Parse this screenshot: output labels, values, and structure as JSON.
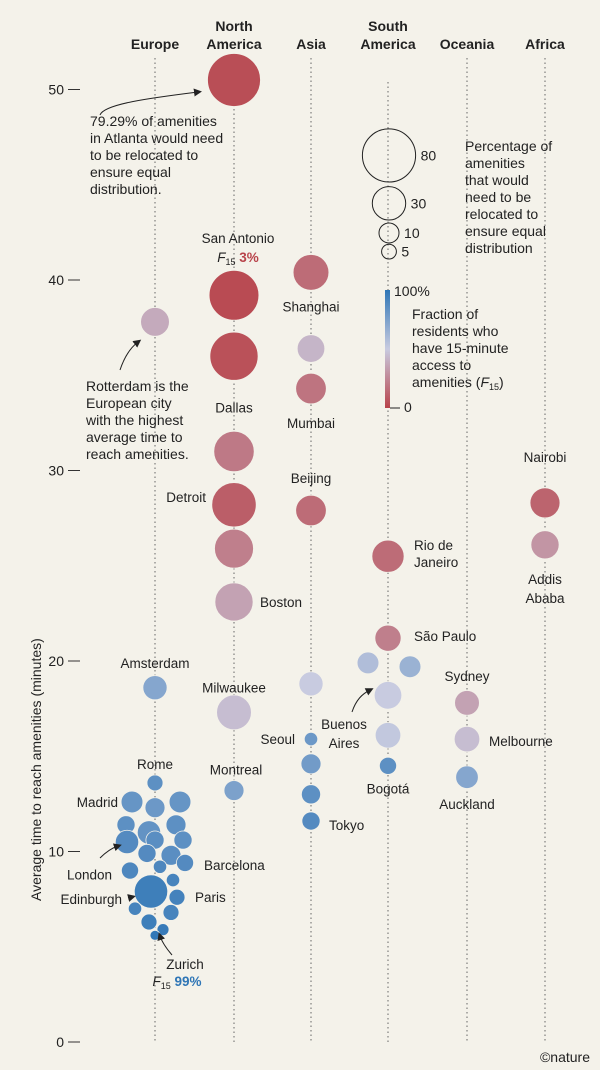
{
  "chart_data": {
    "type": "scatter",
    "ylabel": "Average time to reach amenities (minutes)",
    "y_ticks": [
      "0",
      "10",
      "20",
      "30",
      "40",
      "50"
    ],
    "ylim": [
      0,
      53
    ],
    "categories": [
      {
        "key": "europe",
        "lines": [
          "Europe"
        ]
      },
      {
        "key": "na",
        "lines": [
          "North",
          "America"
        ]
      },
      {
        "key": "asia",
        "lines": [
          "Asia"
        ]
      },
      {
        "key": "sa",
        "lines": [
          "South",
          "America"
        ]
      },
      {
        "key": "oceania",
        "lines": [
          "Oceania"
        ]
      },
      {
        "key": "africa",
        "lines": [
          "Africa"
        ]
      }
    ],
    "points": [
      {
        "cat": "na",
        "y": 50.5,
        "pct": 79.29,
        "f15": 0.04,
        "dx": 0
      },
      {
        "cat": "na",
        "y": 39.2,
        "pct": 70,
        "f15": 0.03,
        "dx": 0
      },
      {
        "cat": "na",
        "y": 36.0,
        "pct": 65,
        "f15": 0.05,
        "dx": 0
      },
      {
        "cat": "na",
        "y": 31.0,
        "pct": 45,
        "f15": 0.2,
        "dx": 0
      },
      {
        "cat": "na",
        "y": 28.2,
        "pct": 55,
        "f15": 0.1,
        "dx": 0
      },
      {
        "cat": "na",
        "y": 25.9,
        "pct": 42,
        "f15": 0.22,
        "dx": 0
      },
      {
        "cat": "na",
        "y": 23.1,
        "pct": 40,
        "f15": 0.35,
        "dx": 0
      },
      {
        "cat": "na",
        "y": 17.3,
        "pct": 33,
        "f15": 0.45,
        "dx": 0
      },
      {
        "cat": "na",
        "y": 13.2,
        "pct": 10,
        "f15": 0.75,
        "dx": 0
      },
      {
        "cat": "europe",
        "y": 37.8,
        "pct": 22,
        "f15": 0.38,
        "dx": 0
      },
      {
        "cat": "europe",
        "y": 18.6,
        "pct": 15,
        "f15": 0.72,
        "dx": 0
      },
      {
        "cat": "europe",
        "y": 13.6,
        "pct": 6,
        "f15": 0.85,
        "dx": 0
      },
      {
        "cat": "europe",
        "y": 12.6,
        "pct": 12,
        "f15": 0.82,
        "dx": -23
      },
      {
        "cat": "europe",
        "y": 12.3,
        "pct": 10,
        "f15": 0.8,
        "dx": 0
      },
      {
        "cat": "europe",
        "y": 12.6,
        "pct": 12,
        "f15": 0.82,
        "dx": 25
      },
      {
        "cat": "europe",
        "y": 11.4,
        "pct": 8,
        "f15": 0.85,
        "dx": -29
      },
      {
        "cat": "europe",
        "y": 11.4,
        "pct": 10,
        "f15": 0.85,
        "dx": 21
      },
      {
        "cat": "europe",
        "y": 11.0,
        "pct": 14,
        "f15": 0.83,
        "dx": -6
      },
      {
        "cat": "europe",
        "y": 10.6,
        "pct": 8,
        "f15": 0.85,
        "dx": 28
      },
      {
        "cat": "europe",
        "y": 10.5,
        "pct": 14,
        "f15": 0.88,
        "dx": -28
      },
      {
        "cat": "europe",
        "y": 10.6,
        "pct": 8,
        "f15": 0.86,
        "dx": 0
      },
      {
        "cat": "europe",
        "y": 9.9,
        "pct": 8,
        "f15": 0.88,
        "dx": -8
      },
      {
        "cat": "europe",
        "y": 9.8,
        "pct": 10,
        "f15": 0.86,
        "dx": 16
      },
      {
        "cat": "europe",
        "y": 9.0,
        "pct": 7,
        "f15": 0.9,
        "dx": -25
      },
      {
        "cat": "europe",
        "y": 9.4,
        "pct": 7,
        "f15": 0.88,
        "dx": 30
      },
      {
        "cat": "europe",
        "y": 9.2,
        "pct": 4,
        "f15": 0.9,
        "dx": 5
      },
      {
        "cat": "europe",
        "y": 7.9,
        "pct": 30,
        "f15": 0.95,
        "dx": -4
      },
      {
        "cat": "europe",
        "y": 8.5,
        "pct": 4,
        "f15": 0.92,
        "dx": 18
      },
      {
        "cat": "europe",
        "y": 7.6,
        "pct": 6,
        "f15": 0.93,
        "dx": 22
      },
      {
        "cat": "europe",
        "y": 7.0,
        "pct": 4,
        "f15": 0.92,
        "dx": -20
      },
      {
        "cat": "europe",
        "y": 6.8,
        "pct": 6,
        "f15": 0.92,
        "dx": 16
      },
      {
        "cat": "europe",
        "y": 6.3,
        "pct": 6,
        "f15": 0.95,
        "dx": -6
      },
      {
        "cat": "europe",
        "y": 5.9,
        "pct": 3,
        "f15": 0.97,
        "dx": 8
      },
      {
        "cat": "europe",
        "y": 5.6,
        "pct": 2,
        "f15": 0.99,
        "dx": 0
      },
      {
        "cat": "asia",
        "y": 40.4,
        "pct": 35,
        "f15": 0.15,
        "dx": 0
      },
      {
        "cat": "asia",
        "y": 36.4,
        "pct": 20,
        "f15": 0.42,
        "dx": 0
      },
      {
        "cat": "asia",
        "y": 34.3,
        "pct": 25,
        "f15": 0.18,
        "dx": 0
      },
      {
        "cat": "asia",
        "y": 27.9,
        "pct": 25,
        "f15": 0.15,
        "dx": 0
      },
      {
        "cat": "asia",
        "y": 18.8,
        "pct": 15,
        "f15": 0.5,
        "dx": 0
      },
      {
        "cat": "asia",
        "y": 15.9,
        "pct": 4,
        "f15": 0.8,
        "dx": 0
      },
      {
        "cat": "asia",
        "y": 14.6,
        "pct": 10,
        "f15": 0.78,
        "dx": 0
      },
      {
        "cat": "asia",
        "y": 13.0,
        "pct": 9,
        "f15": 0.85,
        "dx": 0
      },
      {
        "cat": "asia",
        "y": 11.6,
        "pct": 8,
        "f15": 0.88,
        "dx": 0
      },
      {
        "cat": "sa",
        "y": 25.5,
        "pct": 28,
        "f15": 0.15,
        "dx": 0
      },
      {
        "cat": "sa",
        "y": 21.2,
        "pct": 18,
        "f15": 0.22,
        "dx": 0
      },
      {
        "cat": "sa",
        "y": 19.9,
        "pct": 12,
        "f15": 0.58,
        "dx": -20
      },
      {
        "cat": "sa",
        "y": 19.7,
        "pct": 12,
        "f15": 0.65,
        "dx": 22
      },
      {
        "cat": "sa",
        "y": 18.2,
        "pct": 20,
        "f15": 0.5,
        "dx": 0
      },
      {
        "cat": "sa",
        "y": 16.1,
        "pct": 17,
        "f15": 0.52,
        "dx": 0
      },
      {
        "cat": "sa",
        "y": 14.5,
        "pct": 7,
        "f15": 0.85,
        "dx": 0
      },
      {
        "cat": "oceania",
        "y": 17.8,
        "pct": 16,
        "f15": 0.35,
        "dx": 0
      },
      {
        "cat": "oceania",
        "y": 15.9,
        "pct": 17,
        "f15": 0.45,
        "dx": 0
      },
      {
        "cat": "oceania",
        "y": 13.9,
        "pct": 13,
        "f15": 0.72,
        "dx": 0
      },
      {
        "cat": "africa",
        "y": 28.3,
        "pct": 24,
        "f15": 0.12,
        "dx": 0
      },
      {
        "cat": "africa",
        "y": 26.1,
        "pct": 21,
        "f15": 0.3,
        "dx": 0
      }
    ],
    "city_labels": [
      {
        "text": "San Antonio",
        "cat": "na",
        "dx": 4,
        "y": 42.2,
        "anchor": "middle"
      },
      {
        "text": "Dallas",
        "cat": "na",
        "dx": 0,
        "y": 33.3,
        "anchor": "middle"
      },
      {
        "text": "Detroit",
        "cat": "na",
        "dx": -28,
        "y": 28.6,
        "anchor": "end"
      },
      {
        "text": "Boston",
        "cat": "na",
        "dx": 26,
        "y": 23.1,
        "anchor": "start"
      },
      {
        "text": "Milwaukee",
        "cat": "na",
        "dx": 0,
        "y": 18.6,
        "anchor": "middle"
      },
      {
        "text": "Montreal",
        "cat": "na",
        "dx": 2,
        "y": 14.3,
        "anchor": "middle"
      },
      {
        "text": "Amsterdam",
        "cat": "europe",
        "dx": 0,
        "y": 19.9,
        "anchor": "middle"
      },
      {
        "text": "Rome",
        "cat": "europe",
        "dx": 0,
        "y": 14.6,
        "anchor": "middle"
      },
      {
        "text": "Madrid",
        "cat": "europe",
        "dx": -37,
        "y": 12.6,
        "anchor": "end"
      },
      {
        "text": "Barcelona",
        "cat": "europe",
        "dx": 49,
        "y": 9.3,
        "anchor": "start"
      },
      {
        "text": "London",
        "cat": "europe",
        "dx": -43,
        "y": 8.8,
        "anchor": "end"
      },
      {
        "text": "Edinburgh",
        "cat": "europe",
        "dx": -33,
        "y": 7.5,
        "anchor": "end"
      },
      {
        "text": "Paris",
        "cat": "europe",
        "dx": 40,
        "y": 7.6,
        "anchor": "start"
      },
      {
        "text": "Zurich",
        "cat": "europe",
        "dx": 30,
        "y": 4.1,
        "anchor": "middle"
      },
      {
        "text": "Shanghai",
        "cat": "asia",
        "dx": 0,
        "y": 38.6,
        "anchor": "middle"
      },
      {
        "text": "Mumbai",
        "cat": "asia",
        "dx": 0,
        "y": 32.5,
        "anchor": "middle"
      },
      {
        "text": "Beijing",
        "cat": "asia",
        "dx": 0,
        "y": 29.6,
        "anchor": "middle"
      },
      {
        "text": "Seoul",
        "cat": "asia",
        "dx": -16,
        "y": 15.9,
        "anchor": "end"
      },
      {
        "text": "Tokyo",
        "cat": "asia",
        "dx": 18,
        "y": 11.4,
        "anchor": "start"
      },
      {
        "text": "Rio de",
        "cat": "sa",
        "dx": 26,
        "y": 26.1,
        "anchor": "start"
      },
      {
        "text": "Janeiro",
        "cat": "sa",
        "dx": 26,
        "y": 25.2,
        "anchor": "start"
      },
      {
        "text": "São Paulo",
        "cat": "sa",
        "dx": 26,
        "y": 21.3,
        "anchor": "start"
      },
      {
        "text": "Buenos",
        "cat": "sa",
        "dx": -44,
        "y": 16.7,
        "anchor": "middle"
      },
      {
        "text": "Aires",
        "cat": "sa",
        "dx": -44,
        "y": 15.7,
        "anchor": "middle"
      },
      {
        "text": "Bogotá",
        "cat": "sa",
        "dx": 0,
        "y": 13.3,
        "anchor": "middle"
      },
      {
        "text": "Sydney",
        "cat": "oceania",
        "dx": 0,
        "y": 19.2,
        "anchor": "middle"
      },
      {
        "text": "Melbourne",
        "cat": "oceania",
        "dx": 22,
        "y": 15.8,
        "anchor": "start"
      },
      {
        "text": "Auckland",
        "cat": "oceania",
        "dx": 0,
        "y": 12.5,
        "anchor": "middle"
      },
      {
        "text": "Nairobi",
        "cat": "africa",
        "dx": 0,
        "y": 30.7,
        "anchor": "middle"
      },
      {
        "text": "Addis",
        "cat": "africa",
        "dx": 0,
        "y": 24.3,
        "anchor": "middle"
      },
      {
        "text": "Ababa",
        "cat": "africa",
        "dx": 0,
        "y": 23.3,
        "anchor": "middle"
      }
    ],
    "f15_labels": [
      {
        "cat": "na",
        "dx": 4,
        "y": 41.2,
        "value": "3%",
        "color": "#b8434a"
      },
      {
        "cat": "europe",
        "dx": 22,
        "y": 3.2,
        "value": "99%",
        "color": "#2f76b6"
      }
    ],
    "f15_symbol": "F",
    "f15_subscript": "15",
    "annotations": [
      {
        "lines": [
          "79.29% of amenities",
          "in Atlanta would need",
          "to be relocated to",
          "ensure equal",
          "distribution."
        ]
      },
      {
        "lines": [
          "Rotterdam is the",
          "European city",
          "with the highest",
          "average time to",
          "reach amenities."
        ]
      }
    ],
    "size_legend": {
      "values": [
        80,
        30,
        10,
        5
      ],
      "title_lines": [
        "Percentage of",
        "amenities",
        "that would",
        "need to be",
        "relocated to",
        "ensure equal",
        "distribution"
      ]
    },
    "color_legend": {
      "max_label": "100%",
      "min_label": "0",
      "title_lines": [
        "Fraction of",
        "residents who",
        "have 15-minute",
        "access to",
        "amenities ("
      ],
      "title_suffix": ")",
      "colors": [
        "#2f76b6",
        "#c8cbe0",
        "#b8434a"
      ]
    },
    "credit": "©nature"
  }
}
